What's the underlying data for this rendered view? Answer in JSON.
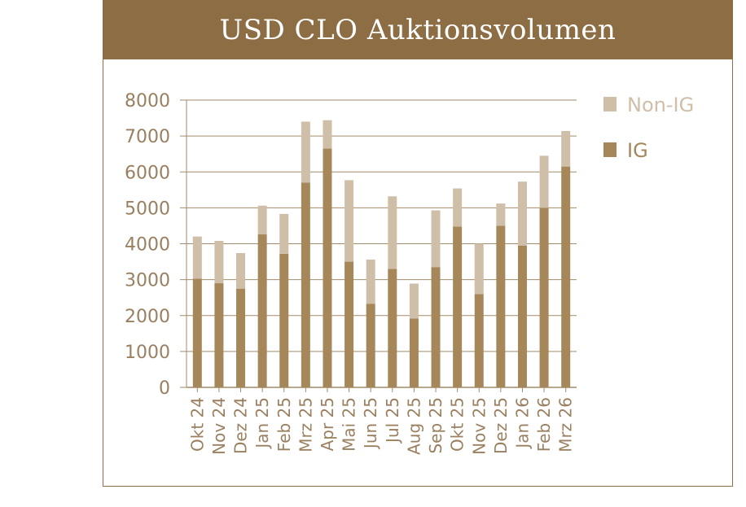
{
  "title": "USD CLO Auktionsvolumen",
  "colors": {
    "header_bg": "#8c6d44",
    "ig": "#a5875a",
    "non_ig": "#cfbea8",
    "axis_text": "#9a8060",
    "grid": "#a28b6b"
  },
  "chart_data": {
    "type": "bar",
    "stacked": true,
    "categories": [
      "Okt 24",
      "Nov 24",
      "Dez 24",
      "Jan 25",
      "Feb 25",
      "Mrz 25",
      "Apr 25",
      "Mai 25",
      "Jun 25",
      "Jul 25",
      "Aug 25",
      "Sep 25",
      "Okt 25",
      "Nov 25",
      "Dez 25",
      "Jan 26",
      "Feb 26",
      "Mrz 26"
    ],
    "series": [
      {
        "name": "IG",
        "values": [
          3030,
          2900,
          2750,
          4260,
          3720,
          5700,
          6650,
          3500,
          2330,
          3300,
          1920,
          3350,
          4480,
          2600,
          4500,
          3950,
          5000,
          6150
        ]
      },
      {
        "name": "Non-IG",
        "values": [
          1170,
          1180,
          990,
          800,
          1110,
          1700,
          790,
          2270,
          1230,
          2020,
          970,
          1580,
          1060,
          1400,
          620,
          1780,
          1450,
          990
        ]
      }
    ],
    "yticks": [
      "0",
      "1000",
      "2000",
      "3000",
      "4000",
      "5000",
      "6000",
      "7000",
      "8000"
    ],
    "ylim": [
      0,
      8000
    ],
    "grid": true,
    "legend": {
      "position": "top-right",
      "entries": [
        "Non-IG",
        "IG"
      ]
    }
  }
}
